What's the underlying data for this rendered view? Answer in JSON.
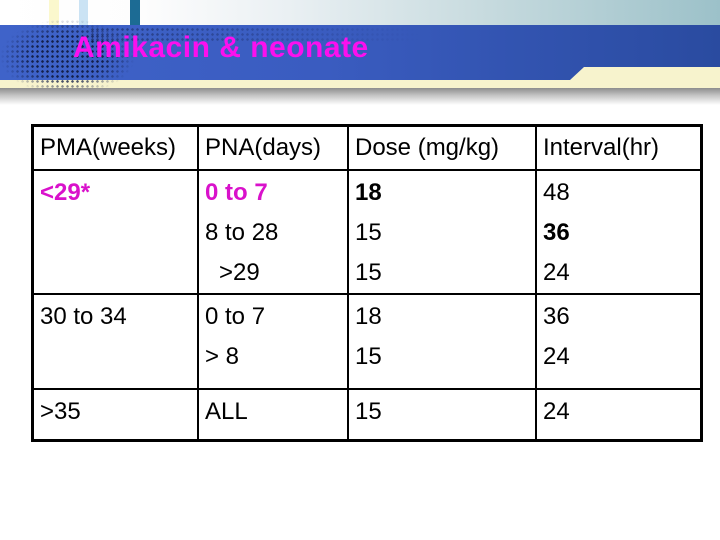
{
  "slide": {
    "title": "Amikacin & neonate"
  },
  "table": {
    "headers": [
      "PMA(weeks)",
      "PNA(days)",
      "Dose (mg/kg)",
      "Interval(hr)"
    ],
    "rows": [
      {
        "pma": "<29*",
        "pna": [
          "0 to 7",
          "8 to 28",
          ">29"
        ],
        "dose": [
          "18",
          "15",
          "15"
        ],
        "interval": [
          "48",
          "36",
          "24"
        ]
      },
      {
        "pma": "30 to 34",
        "pna": [
          "0 to 7",
          "> 8"
        ],
        "dose": [
          "18",
          "15"
        ],
        "interval": [
          "36",
          "24"
        ]
      },
      {
        "pma": ">35",
        "pna": [
          "ALL"
        ],
        "dose": [
          "15"
        ],
        "interval": [
          "24"
        ]
      }
    ]
  },
  "colors": {
    "banner_blue_left": "#3f63c9",
    "banner_blue_right": "#2a4ba0",
    "title_magenta": "#fb10ee",
    "table_magenta": "#d911cb",
    "cream_strip": "#f7f3cd",
    "teal_stripe": "#1c6b94",
    "yellow_stripe": "#fbf8cd",
    "light_blue_stripe": "#cbe3f4",
    "top_band_right": "#9cc1c9"
  }
}
